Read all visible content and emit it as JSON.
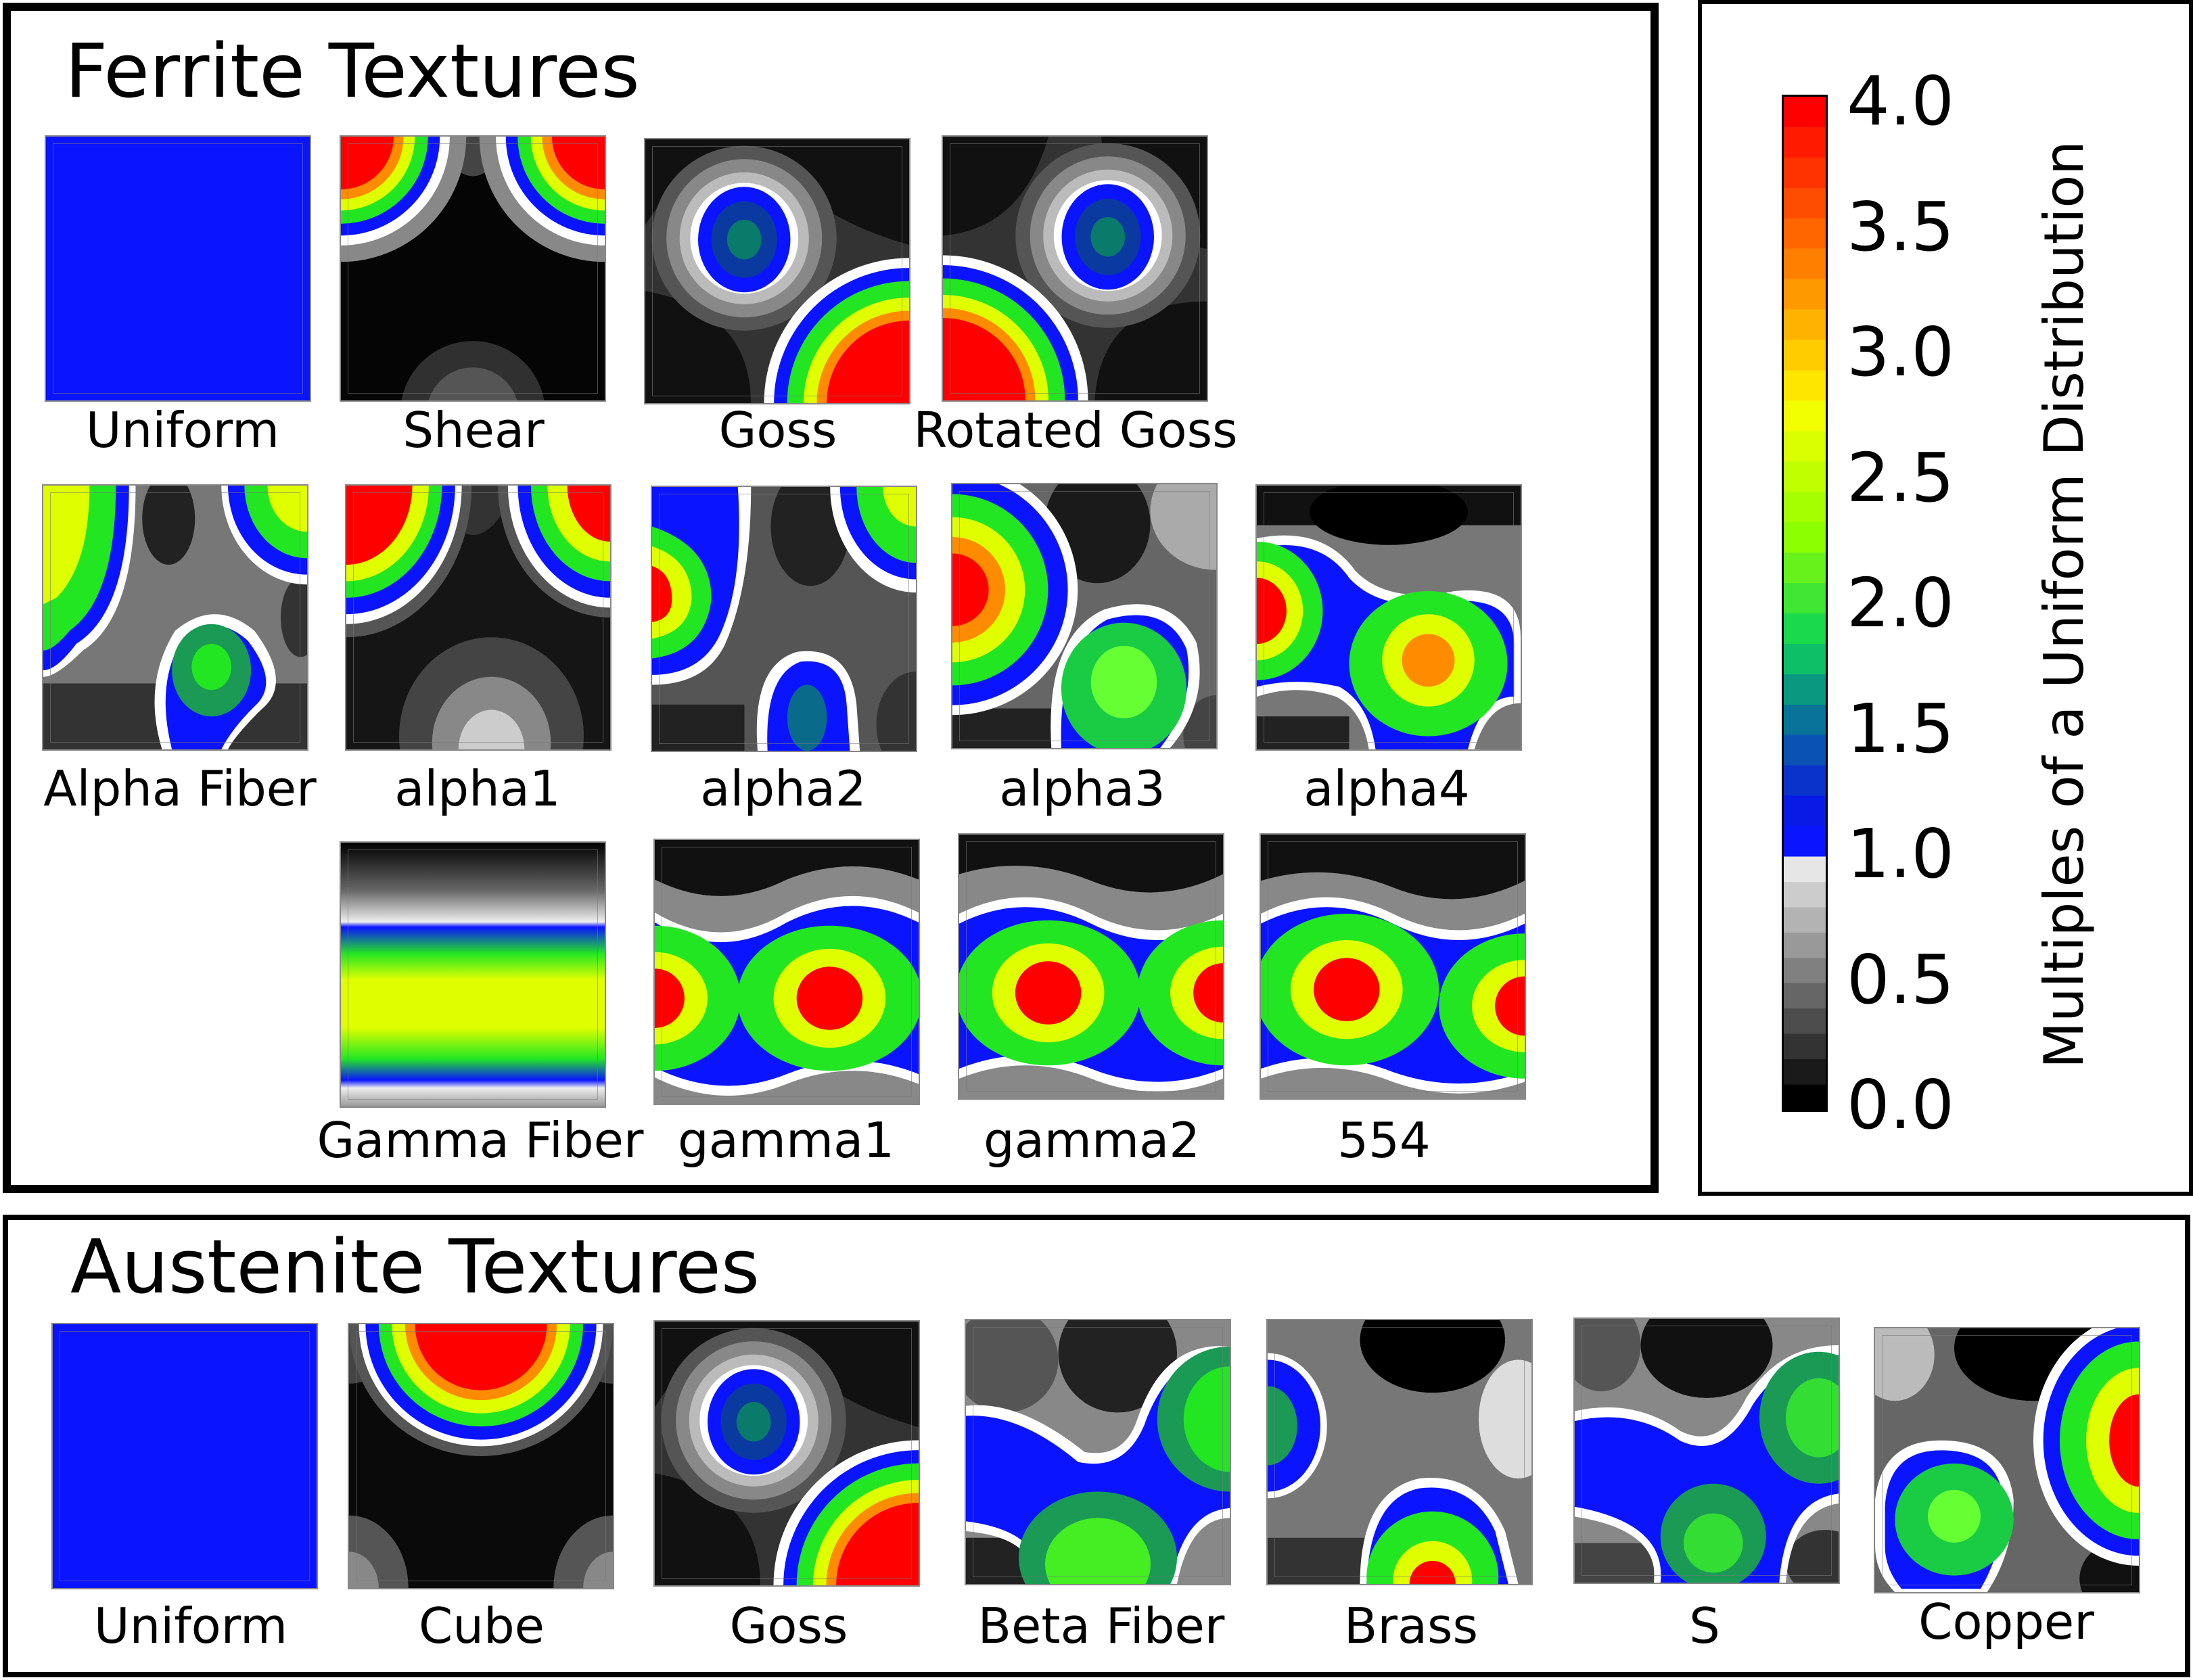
{
  "ferrite": {
    "title": "Ferrite Textures",
    "labels": {
      "uniform": "Uniform",
      "shear": "Shear",
      "goss": "Goss",
      "rotated_goss": "Rotated Goss",
      "alpha_fiber": "Alpha Fiber",
      "alpha1": "alpha1",
      "alpha2": "alpha2",
      "alpha3": "alpha3",
      "alpha4": "alpha4",
      "gamma_fiber": "Gamma Fiber",
      "gamma1": "gamma1",
      "gamma2": "gamma2",
      "t554": "554"
    }
  },
  "austenite": {
    "title": "Austenite Textures",
    "labels": {
      "uniform": "Uniform",
      "cube": "Cube",
      "goss": "Goss",
      "beta_fiber": "Beta Fiber",
      "brass": "Brass",
      "s": "S",
      "copper": "Copper"
    }
  },
  "colorbar": {
    "title": "Multiples of a Uniform Distribution",
    "ticks": [
      "4.0",
      "3.5",
      "3.0",
      "2.5",
      "2.0",
      "1.5",
      "1.0",
      "0.5",
      "0.0"
    ],
    "range": [
      0.0,
      4.0
    ]
  },
  "colors": {
    "uniform_blue": "#0a14ff",
    "red": "#ff0000",
    "yellow": "#dfff00",
    "green": "#22e622",
    "blue": "#0a14ff",
    "black": "#000000",
    "light_gray": "#e6e6e6"
  }
}
